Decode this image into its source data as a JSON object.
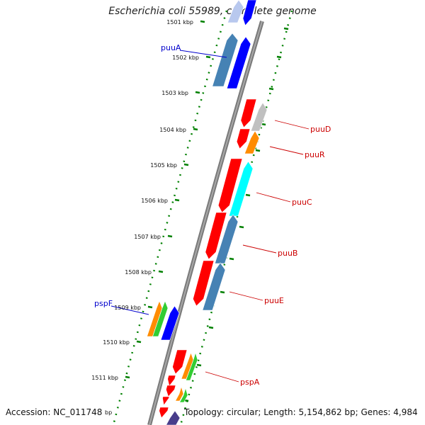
{
  "title": "Escherichia coli 55989, complete genome",
  "accession": "Accession: NC_011748",
  "topology": "Topology: circular; Length: 5,154,862 bp; Genes: 4,984",
  "truncated_label": "bp",
  "kbp_labels": [
    "1501 kbp",
    "1502 kbp",
    "1503 kbp",
    "1504 kbp",
    "1505 kbp",
    "1506 kbp",
    "1507 kbp",
    "1508 kbp",
    "1509 kbp",
    "1510 kbp",
    "1511 kbp"
  ],
  "gene_labels_blue": [
    "puuA",
    "pspF"
  ],
  "gene_labels_red": [
    "puuD",
    "puuR",
    "puuC",
    "puuB",
    "puuE",
    "pspA"
  ],
  "colors": {
    "red": "#ff0000",
    "steelblue": "#4682b4",
    "blue": "#0000ff",
    "cyan": "#00ffff",
    "orange": "#ff8c00",
    "green": "#32cd32",
    "gray": "#c0c0c0",
    "slate": "#483d8b",
    "backbone": "#808080",
    "ticks": "#008000",
    "label_blue": "#0000cc",
    "label_red": "#cc0000"
  }
}
